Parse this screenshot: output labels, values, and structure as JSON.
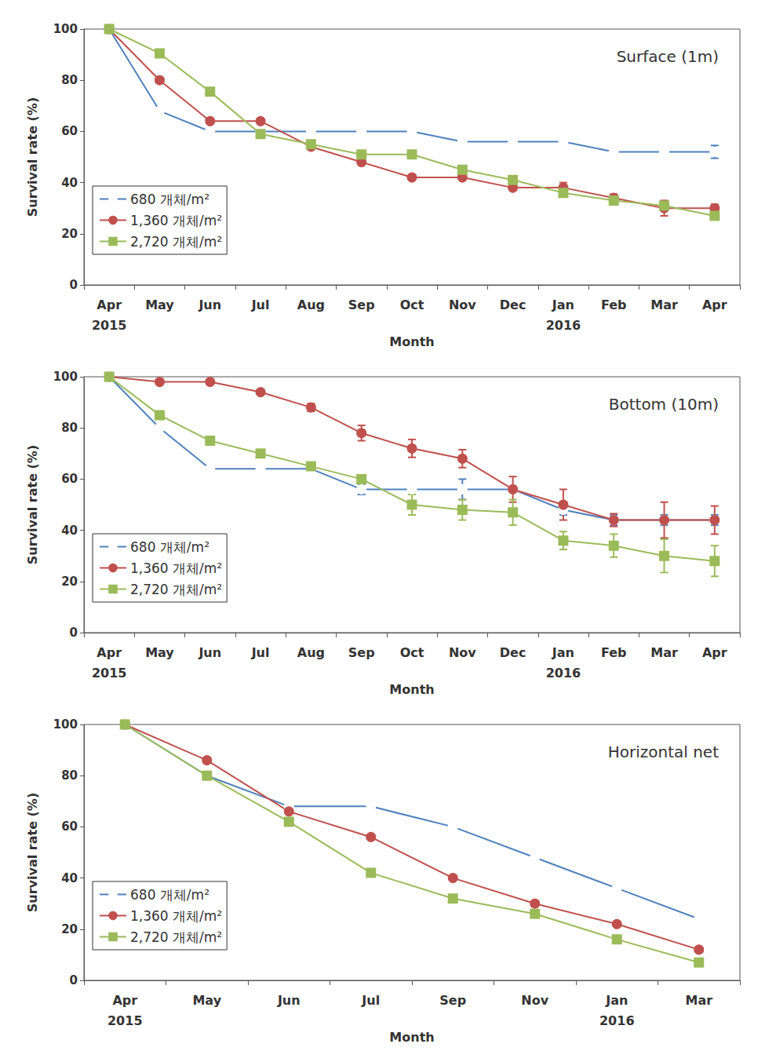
{
  "chart_data": [
    {
      "type": "line",
      "title": "Surface (1m)",
      "x_label": "Month",
      "y_label": "Survival rate (%)",
      "categories": [
        "Apr\n2015",
        "May",
        "Jun",
        "Jul",
        "Aug",
        "Sep",
        "Oct",
        "Nov",
        "Dec",
        "Jan\n2016",
        "Feb",
        "Mar",
        "Apr"
      ],
      "ylim": [
        0,
        100
      ],
      "yticks": [
        0,
        20,
        40,
        60,
        80,
        100
      ],
      "grid": false,
      "legend": "lower left",
      "series": [
        {
          "name": "680 개체/m²",
          "color": "#4f81bd",
          "marker": "open circle",
          "values": [
            100,
            68,
            60,
            60,
            60,
            60,
            60,
            56,
            56,
            56,
            52,
            52,
            52
          ],
          "errors": [
            null,
            null,
            null,
            null,
            null,
            null,
            null,
            null,
            null,
            null,
            null,
            null,
            2.5
          ]
        },
        {
          "name": "1,360 개체/m²",
          "color": "#c0504d",
          "marker": "circle",
          "values": [
            100,
            80,
            64,
            64,
            54,
            48,
            42,
            42,
            38,
            38,
            34,
            30,
            30
          ],
          "errors": [
            null,
            null,
            null,
            null,
            null,
            null,
            null,
            null,
            null,
            2,
            1.5,
            3,
            1.5
          ]
        },
        {
          "name": "2,720 개체/m²",
          "color": "#9bbb59",
          "marker": "square",
          "values": [
            100,
            90.5,
            75.5,
            59,
            55,
            51,
            51,
            45,
            41,
            36,
            33,
            31,
            27
          ],
          "errors": [
            null,
            null,
            null,
            null,
            null,
            null,
            null,
            null,
            null,
            null,
            null,
            null,
            null
          ]
        }
      ]
    },
    {
      "type": "line",
      "title": "Bottom (10m)",
      "x_label": "Month",
      "y_label": "Survival rate (%)",
      "categories": [
        "Apr\n2015",
        "May",
        "Jun",
        "Jul",
        "Aug",
        "Sep",
        "Oct",
        "Nov",
        "Dec",
        "Jan\n2016",
        "Feb",
        "Mar",
        "Apr"
      ],
      "ylim": [
        0,
        100
      ],
      "yticks": [
        0,
        20,
        40,
        60,
        80,
        100
      ],
      "grid": false,
      "legend": "lower left",
      "series": [
        {
          "name": "680 개체/m²",
          "color": "#4f81bd",
          "marker": "open circle",
          "values": [
            100,
            80,
            64,
            64,
            64,
            56,
            56,
            56,
            56,
            48,
            44,
            44,
            44
          ],
          "errors": [
            null,
            null,
            null,
            null,
            null,
            2,
            null,
            4,
            null,
            2,
            2,
            2,
            2
          ]
        },
        {
          "name": "1,360 개체/m²",
          "color": "#c0504d",
          "marker": "circle",
          "values": [
            100,
            98,
            98,
            94,
            88,
            78,
            72,
            68,
            56,
            50,
            44,
            44,
            44
          ],
          "errors": [
            null,
            null,
            null,
            null,
            1.5,
            3,
            3.5,
            3.5,
            5,
            6,
            2.5,
            7,
            5.5
          ]
        },
        {
          "name": "2,720 개체/m²",
          "color": "#9bbb59",
          "marker": "square",
          "values": [
            100,
            85,
            75,
            70,
            65,
            60,
            50,
            48,
            47,
            36,
            34,
            30,
            28
          ],
          "errors": [
            null,
            null,
            null,
            null,
            null,
            null,
            4,
            4,
            5,
            3.5,
            4.5,
            6.5,
            6
          ]
        }
      ]
    },
    {
      "type": "line",
      "title": "Horizontal net",
      "x_label": "Month",
      "y_label": "Survival rate (%)",
      "categories": [
        "Apr\n2015",
        "May",
        "Jun",
        "Jul",
        "Sep",
        "Nov",
        "Jan\n2016",
        "Mar"
      ],
      "ylim": [
        0,
        100
      ],
      "yticks": [
        0,
        20,
        40,
        60,
        80,
        100
      ],
      "grid": false,
      "legend": "lower left",
      "series": [
        {
          "name": "680 개체/m²",
          "color": "#4f81bd",
          "marker": "open circle",
          "values": [
            100,
            80,
            68,
            68,
            60,
            48,
            36,
            24
          ]
        },
        {
          "name": "1,360 개체/m²",
          "color": "#c0504d",
          "marker": "circle",
          "values": [
            100,
            86,
            66,
            56,
            40,
            30,
            22,
            12
          ]
        },
        {
          "name": "2,720 개체/m²",
          "color": "#9bbb59",
          "marker": "square",
          "values": [
            100,
            80,
            62,
            42,
            32,
            26,
            16,
            7
          ]
        }
      ]
    }
  ]
}
